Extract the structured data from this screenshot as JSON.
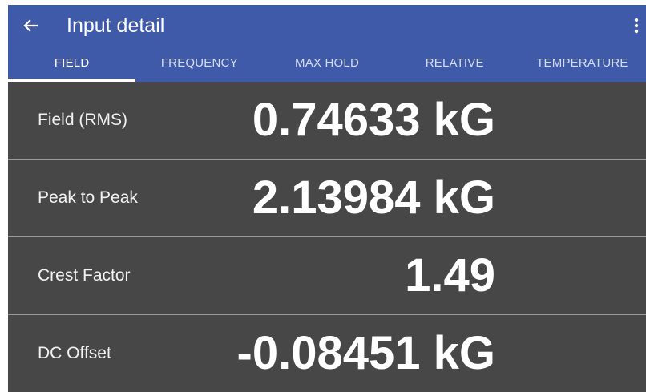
{
  "header": {
    "title": "Input detail"
  },
  "tabs": [
    "FIELD",
    "FREQUENCY",
    "MAX HOLD",
    "RELATIVE",
    "TEMPERATURE"
  ],
  "rows": [
    {
      "label": "Field (RMS)",
      "value": "0.74633 kG"
    },
    {
      "label": "Peak to Peak",
      "value": "2.13984 kG"
    },
    {
      "label": "Crest Factor",
      "value": "1.49"
    },
    {
      "label": "DC Offset",
      "value": "-0.08451 kG"
    }
  ]
}
